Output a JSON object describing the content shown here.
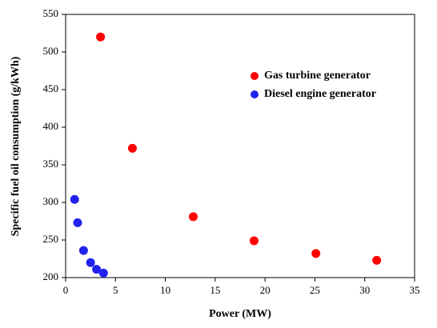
{
  "chart_data": {
    "type": "scatter",
    "x_label": "Power (MW)",
    "y_label": "Specific fuel oil consumption (g/kWh)",
    "xlim": [
      0,
      35
    ],
    "xticks": [
      0,
      5,
      10,
      15,
      20,
      25,
      30,
      35
    ],
    "ylim": [
      200,
      550
    ],
    "yticks": [
      200,
      250,
      300,
      350,
      400,
      450,
      500,
      550
    ],
    "legend": "upper-right",
    "series": [
      {
        "name": "Gas turbine generator",
        "color": "#ff0000",
        "x": [
          3.5,
          6.7,
          12.8,
          18.9,
          25.1,
          31.2
        ],
        "values": [
          520,
          372,
          281,
          249,
          232,
          223
        ]
      },
      {
        "name": "Diesel engine generator",
        "color": "#2222ee",
        "x": [
          0.9,
          1.2,
          1.8,
          2.5,
          3.1,
          3.8
        ],
        "values": [
          304,
          273,
          236,
          220,
          211,
          206
        ]
      }
    ]
  }
}
